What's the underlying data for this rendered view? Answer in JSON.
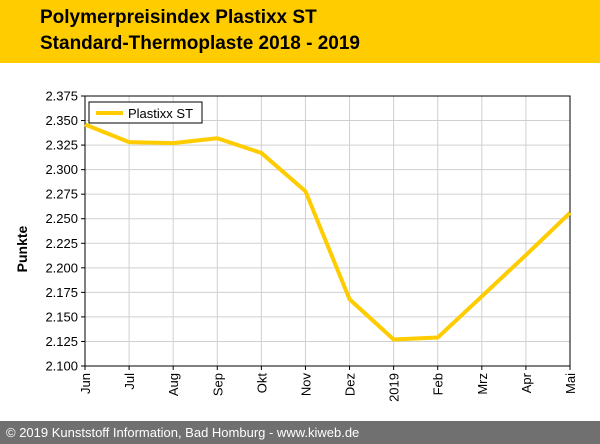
{
  "header": {
    "title_line1": "Polymerpreisindex Plastixx ST",
    "title_line2": "Standard-Thermoplaste 2018 - 2019",
    "background": "#ffcc00"
  },
  "footer": {
    "text": "© 2019 Kunststoff Information, Bad Homburg - www.kiweb.de",
    "background": "#707070"
  },
  "chart_data": {
    "type": "line",
    "title": "Polymerpreisindex Plastixx ST – Standard-Thermoplaste 2018 - 2019",
    "xlabel": "",
    "ylabel": "Punkte",
    "categories": [
      "Jun",
      "Jul",
      "Aug",
      "Sep",
      "Okt",
      "Nov",
      "Dez",
      "2019",
      "Feb",
      "Mrz",
      "Apr",
      "Mai"
    ],
    "series": [
      {
        "name": "Plastixx ST",
        "color": "#ffcc00",
        "values": [
          2.346,
          2.328,
          2.327,
          2.332,
          2.317,
          2.278,
          2.168,
          2.127,
          2.129,
          2.171,
          2.213,
          2.256
        ]
      }
    ],
    "ylim": [
      2.1,
      2.375
    ],
    "yticks": [
      "2.100",
      "2.125",
      "2.150",
      "2.175",
      "2.200",
      "2.225",
      "2.250",
      "2.275",
      "2.300",
      "2.325",
      "2.350",
      "2.375"
    ],
    "grid": true,
    "legend_position": "top-left"
  }
}
